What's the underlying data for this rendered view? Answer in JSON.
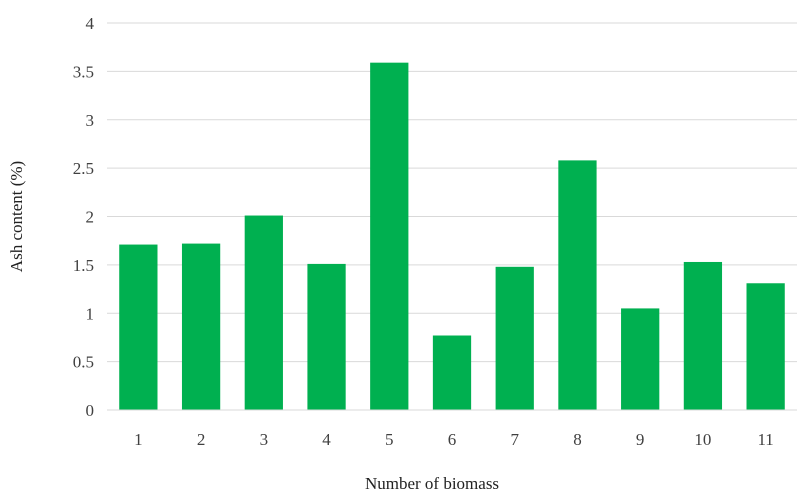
{
  "chart_data": {
    "type": "bar",
    "categories": [
      "1",
      "2",
      "3",
      "4",
      "5",
      "6",
      "7",
      "8",
      "9",
      "10",
      "11"
    ],
    "values": [
      1.71,
      1.72,
      2.01,
      1.51,
      3.59,
      0.77,
      1.48,
      2.58,
      1.05,
      1.53,
      1.31
    ],
    "title": "",
    "xlabel": "Number of biomass",
    "ylabel": "Ash content (%)",
    "ylim": [
      0,
      4
    ],
    "yticks": [
      "0",
      "0.5",
      "1",
      "1.5",
      "2",
      "2.5",
      "3",
      "3.5",
      "4"
    ],
    "ytick_values": [
      0,
      0.5,
      1,
      1.5,
      2,
      2.5,
      3,
      3.5,
      4
    ],
    "grid": true,
    "legend": "none",
    "bar_color": "#00b050"
  }
}
